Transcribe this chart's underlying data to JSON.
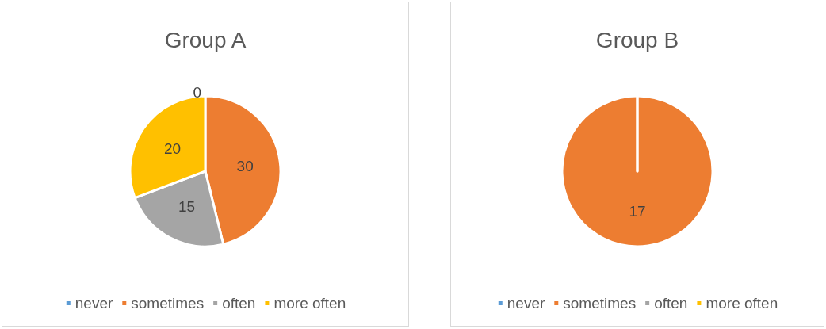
{
  "chart_data": [
    {
      "type": "pie",
      "title": "Group A",
      "categories": [
        "never",
        "sometimes",
        "often",
        "more often"
      ],
      "values": [
        0,
        30,
        15,
        20
      ],
      "colors": [
        "#5b9bd5",
        "#ed7d31",
        "#a5a5a5",
        "#ffc000"
      ],
      "value_labels": [
        "0",
        "30",
        "15",
        "20"
      ],
      "legend": "bottom"
    },
    {
      "type": "pie",
      "title": "Group B",
      "categories": [
        "never",
        "sometimes",
        "often",
        "more often"
      ],
      "values": [
        0,
        17,
        0,
        0
      ],
      "colors": [
        "#5b9bd5",
        "#ed7d31",
        "#a5a5a5",
        "#ffc000"
      ],
      "value_labels": [
        null,
        "17",
        null,
        null
      ],
      "legend": "bottom"
    }
  ]
}
